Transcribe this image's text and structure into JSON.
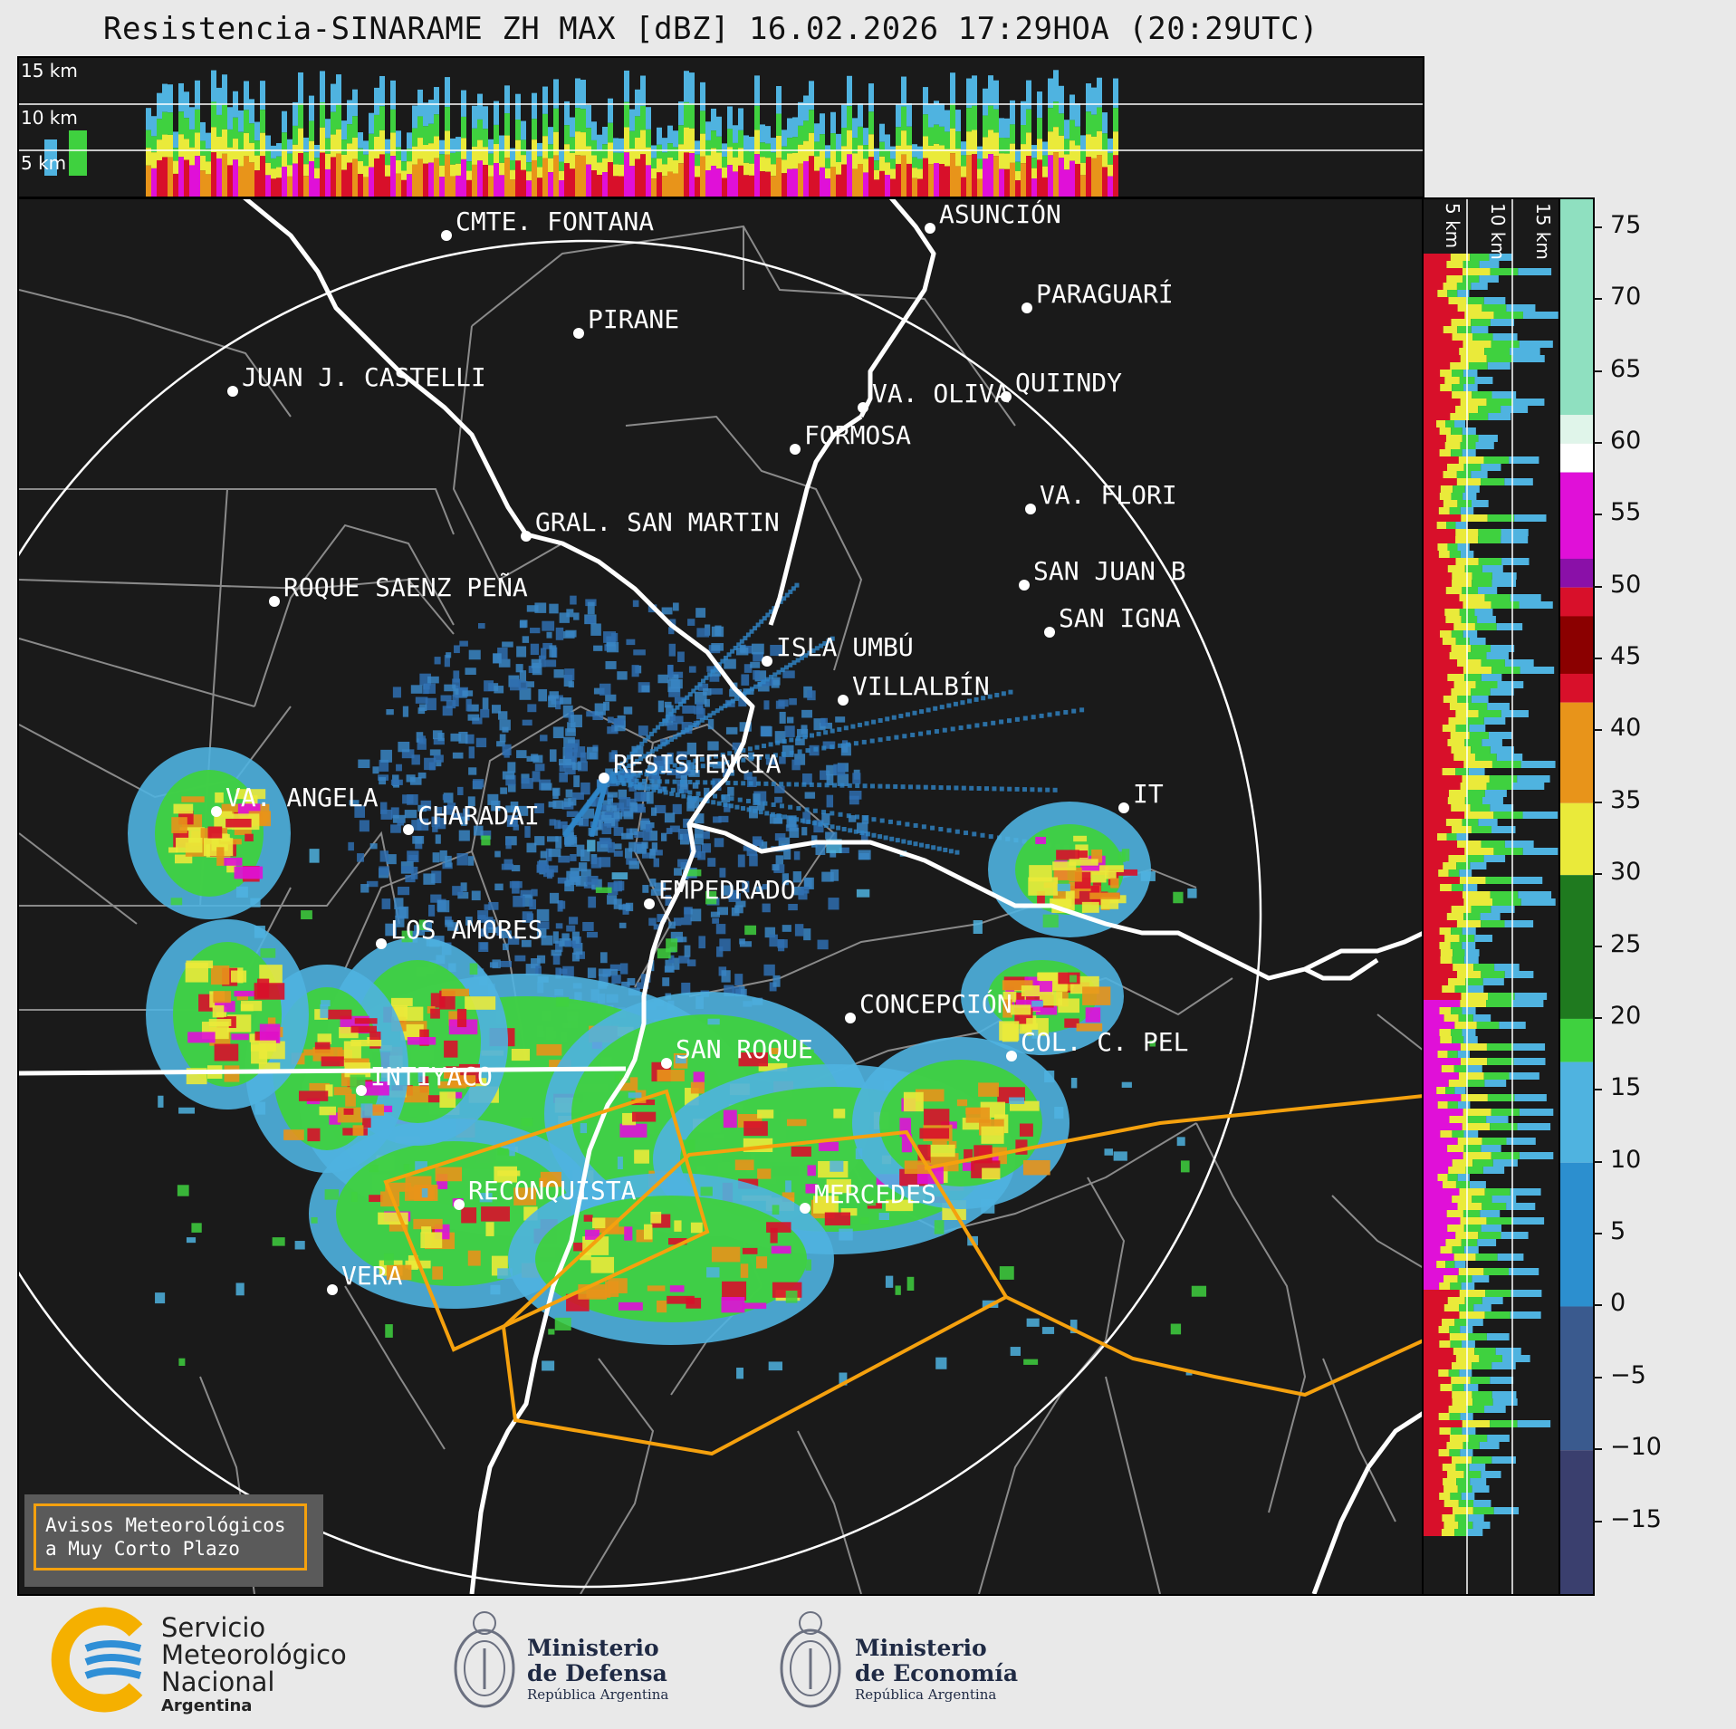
{
  "title": "Resistencia-SINARAME ZH MAX [dBZ] 16.02.2026 17:29HOA (20:29UTC)",
  "top_xsection": {
    "height_labels": [
      "15 km",
      "10 km",
      "5 km"
    ]
  },
  "side_xsection": {
    "height_labels": [
      "5 km",
      "10 km",
      "15 km"
    ]
  },
  "colorbar": {
    "unit": "dBZ",
    "ticks": [
      "75",
      "70",
      "65",
      "60",
      "55",
      "50",
      "45",
      "40",
      "35",
      "30",
      "25",
      "20",
      "15",
      "10",
      "5",
      "0",
      "−5",
      "−10",
      "−15"
    ],
    "range": [
      -20,
      77
    ],
    "colors": {
      "below0": "#3a3f6e",
      "blue": "#2c8fcf",
      "lightblue": "#4fb3e0",
      "green": "#3fd13f",
      "darkgreen": "#1f7a1f",
      "yellow": "#eaea3a",
      "orange": "#e8941a",
      "red": "#d8102a",
      "darkred": "#8b0000",
      "magenta": "#e010d8",
      "purple": "#8a10a8",
      "white": "#ffffff",
      "mint": "#8fe0c0"
    }
  },
  "map": {
    "radar_site": "RESISTENCIA",
    "cities": [
      {
        "name": "CMTE. FONTANA"
      },
      {
        "name": "ASUNCIÓN"
      },
      {
        "name": "PARAGUARÍ"
      },
      {
        "name": "PIRANE"
      },
      {
        "name": "JUAN J. CASTELLI"
      },
      {
        "name": "VA. OLIVA"
      },
      {
        "name": "QUIINDY"
      },
      {
        "name": "FORMOSA"
      },
      {
        "name": "VA. FLORI"
      },
      {
        "name": "GRAL. SAN MARTIN"
      },
      {
        "name": "SAN JUAN B"
      },
      {
        "name": "ROQUE SAENZ PEÑA"
      },
      {
        "name": "SAN IGNA"
      },
      {
        "name": "ISLA UMBÚ"
      },
      {
        "name": "VILLALBÍN"
      },
      {
        "name": "RESISTENCIA"
      },
      {
        "name": "VA. ANGELA"
      },
      {
        "name": "CHARADAI"
      },
      {
        "name": "IT"
      },
      {
        "name": "EMPEDRADO"
      },
      {
        "name": "LOS AMORES"
      },
      {
        "name": "CONCEPCIÓN"
      },
      {
        "name": "SAN ROQUE"
      },
      {
        "name": "COL. C. PEL"
      },
      {
        "name": "INTIYACO"
      },
      {
        "name": "RECONQUISTA"
      },
      {
        "name": "MERCEDES"
      },
      {
        "name": "VERA"
      }
    ]
  },
  "avisos": {
    "line1": "Avisos Meteorológicos",
    "line2": "a Muy Corto Plazo"
  },
  "footer": {
    "smn": {
      "line1": "Servicio",
      "line2": "Meteorológico",
      "line3": "Nacional",
      "line4": "Argentina"
    },
    "defensa": {
      "line1": "Ministerio",
      "line2": "de Defensa",
      "line3": "República Argentina"
    },
    "economia": {
      "line1": "Ministerio",
      "line2": "de Economía",
      "line3": "República Argentina"
    }
  }
}
